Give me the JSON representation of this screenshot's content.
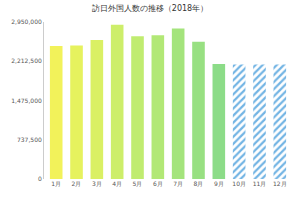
{
  "chart_data": {
    "type": "bar",
    "title": "訪日外国人数の推移（2018年）",
    "categories": [
      "1月",
      "2月",
      "3月",
      "4月",
      "5月",
      "6月",
      "7月",
      "8月",
      "9月",
      "10月",
      "11月",
      "12月"
    ],
    "series": [
      {
        "colors": [
          "#f2f25a",
          "#e6f25e",
          "#daf064",
          "#cdee6a",
          "#c0ec70",
          "#b2e876",
          "#a4e47c",
          "#98e082",
          "#8cdc88",
          "#8cdc88",
          "#8cdc88",
          "#8cdc88"
        ],
        "values": [
          2500000,
          2510000,
          2610000,
          2900000,
          2680000,
          2700000,
          2830000,
          2580000,
          2160000,
          null,
          null,
          null
        ]
      },
      {
        "color": "#72b4e4",
        "marker": "hatch",
        "values": [
          null,
          null,
          null,
          null,
          null,
          null,
          null,
          null,
          null,
          2150000,
          2150000,
          2150000
        ]
      }
    ],
    "ylim": [
      0,
      2950000
    ],
    "yticks": [
      0,
      {
        "value": 737500,
        "label": "737,500"
      },
      {
        "value": 1475000,
        "label": "1,475,000"
      },
      {
        "value": 2212500,
        "label": "2,212,500"
      },
      {
        "value": 2950000,
        "label": "2,950,000"
      }
    ],
    "grid": false
  }
}
